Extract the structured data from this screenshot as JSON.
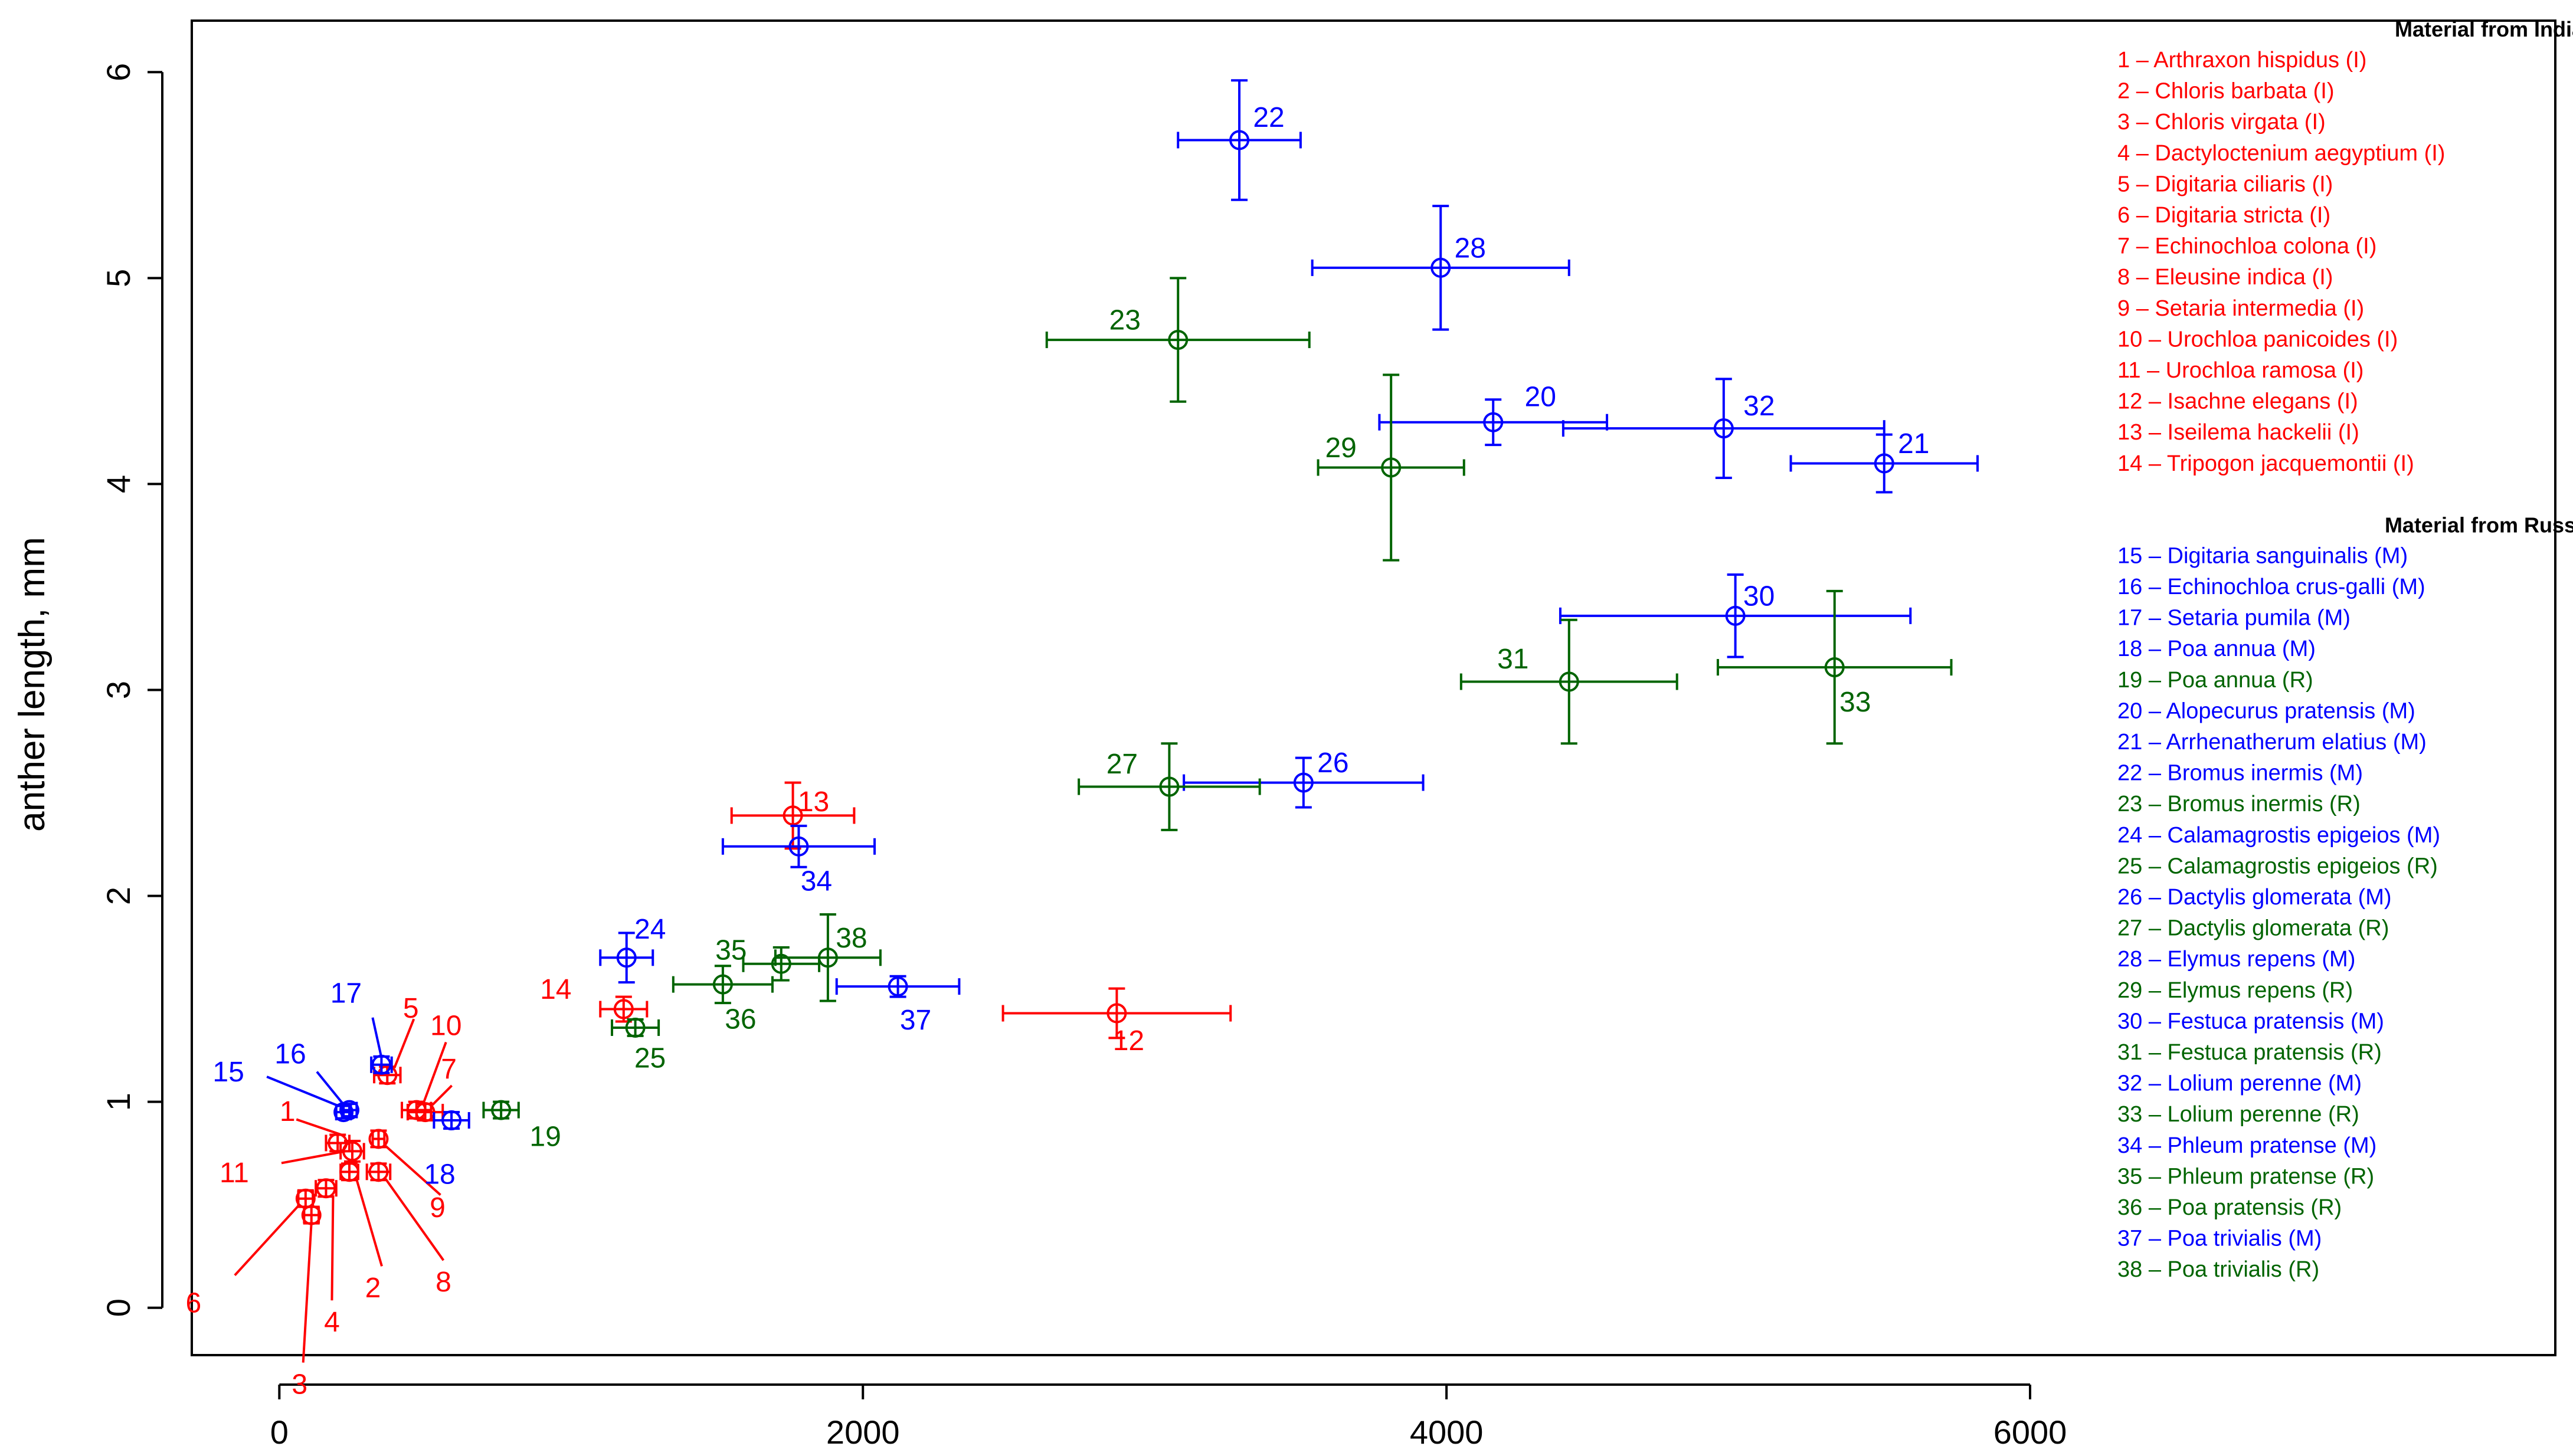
{
  "chart_data": {
    "type": "scatter",
    "ylabel": "anther length, mm",
    "xlabel": "",
    "xlim": [
      -300,
      7800
    ],
    "ylim": [
      -0.23,
      6.25
    ],
    "x_ticks": [
      0,
      2000,
      4000,
      6000
    ],
    "y_ticks": [
      0,
      1,
      2,
      3,
      4,
      5,
      6
    ],
    "legend_position": "top-right",
    "colors": {
      "I": "#ff0000",
      "M": "#0000ff",
      "R": "#006400"
    },
    "legend_groups": [
      {
        "heading": "Material from India",
        "ids": [
          1,
          2,
          3,
          4,
          5,
          6,
          7,
          8,
          9,
          10,
          11,
          12,
          13,
          14
        ]
      },
      {
        "heading": "Material from Russia",
        "ids": [
          15,
          16,
          17,
          18,
          19,
          20,
          21,
          22,
          23,
          24,
          25,
          26,
          27,
          28,
          29,
          30,
          31,
          32,
          33,
          34,
          35,
          36,
          37,
          38
        ]
      }
    ],
    "points": [
      {
        "id": 1,
        "name": "1 – Arthraxon hispidus (I)",
        "group": "I",
        "x": 200,
        "xerr": 40,
        "y": 0.8,
        "yerr": 0.04,
        "label": "1"
      },
      {
        "id": 2,
        "name": "2 – Chloris barbata (I)",
        "group": "I",
        "x": 240,
        "xerr": 30,
        "y": 0.66,
        "yerr": 0.04,
        "label": "2"
      },
      {
        "id": 3,
        "name": "3 – Chloris virgata (I)",
        "group": "I",
        "x": 110,
        "xerr": 25,
        "y": 0.45,
        "yerr": 0.04,
        "label": "3"
      },
      {
        "id": 4,
        "name": "4 – Dactyloctenium aegyptium (I)",
        "group": "I",
        "x": 160,
        "xerr": 35,
        "y": 0.58,
        "yerr": 0.04,
        "label": "4"
      },
      {
        "id": 5,
        "name": "5 – Digitaria ciliaris (I)",
        "group": "I",
        "x": 370,
        "xerr": 45,
        "y": 1.13,
        "yerr": 0.04,
        "label": "5"
      },
      {
        "id": 6,
        "name": "6 – Digitaria stricta (I)",
        "group": "I",
        "x": 90,
        "xerr": 25,
        "y": 0.53,
        "yerr": 0.04,
        "label": "6"
      },
      {
        "id": 7,
        "name": "7 – Echinochloa colona (I)",
        "group": "I",
        "x": 500,
        "xerr": 60,
        "y": 0.95,
        "yerr": 0.04,
        "label": "7"
      },
      {
        "id": 8,
        "name": "8 – Eleusine indica (I)",
        "group": "I",
        "x": 340,
        "xerr": 40,
        "y": 0.66,
        "yerr": 0.04,
        "label": "8"
      },
      {
        "id": 9,
        "name": "9 – Setaria intermedia (I)",
        "group": "I",
        "x": 340,
        "xerr": 20,
        "y": 0.82,
        "yerr": 0.04,
        "label": "9"
      },
      {
        "id": 10,
        "name": "10 – Urochloa panicoides (I)",
        "group": "I",
        "x": 470,
        "xerr": 50,
        "y": 0.96,
        "yerr": 0.04,
        "label": "10"
      },
      {
        "id": 11,
        "name": "11 – Urochloa ramosa (I)",
        "group": "I",
        "x": 250,
        "xerr": 40,
        "y": 0.76,
        "yerr": 0.05,
        "label": "11"
      },
      {
        "id": 12,
        "name": "12 – Isachne elegans (I)",
        "group": "I",
        "x": 2870,
        "xerr": 390,
        "y": 1.43,
        "yerr": 0.12,
        "label": "12"
      },
      {
        "id": 13,
        "name": "13 – Iseilema hackelii (I)",
        "group": "I",
        "x": 1760,
        "xerr": 210,
        "y": 2.39,
        "yerr": 0.16,
        "label": "13"
      },
      {
        "id": 14,
        "name": "14 – Tripogon jacquemontii (I)",
        "group": "I",
        "x": 1180,
        "xerr": 80,
        "y": 1.45,
        "yerr": 0.06,
        "label": "14"
      },
      {
        "id": 15,
        "name": "15 – Digitaria sanguinalis (M)",
        "group": "M",
        "x": 220,
        "xerr": 25,
        "y": 0.95,
        "yerr": 0.03,
        "label": "15"
      },
      {
        "id": 16,
        "name": "16 – Echinochloa crus-galli (M)",
        "group": "M",
        "x": 240,
        "xerr": 25,
        "y": 0.96,
        "yerr": 0.03,
        "label": "16"
      },
      {
        "id": 17,
        "name": "17 – Setaria pumila (M)",
        "group": "M",
        "x": 350,
        "xerr": 35,
        "y": 1.18,
        "yerr": 0.04,
        "label": "17"
      },
      {
        "id": 18,
        "name": "18 – Poa annua (M)",
        "group": "M",
        "x": 590,
        "xerr": 60,
        "y": 0.91,
        "yerr": 0.04,
        "label": "18"
      },
      {
        "id": 19,
        "name": "19 – Poa annua (R)",
        "group": "R",
        "x": 760,
        "xerr": 60,
        "y": 0.96,
        "yerr": 0.04,
        "label": "19"
      },
      {
        "id": 20,
        "name": "20 – Alopecurus pratensis (M)",
        "group": "M",
        "x": 4160,
        "xerr": 390,
        "y": 4.3,
        "yerr": 0.11,
        "label": "20"
      },
      {
        "id": 21,
        "name": "21 – Arrhenatherum elatius (M)",
        "group": "M",
        "x": 5500,
        "xerr": 320,
        "y": 4.1,
        "yerr": 0.14,
        "label": "21"
      },
      {
        "id": 22,
        "name": "22 – Bromus inermis (M)",
        "group": "M",
        "x": 3290,
        "xerr": 210,
        "y": 5.67,
        "yerr": 0.29,
        "label": "22"
      },
      {
        "id": 23,
        "name": "23 – Bromus inermis (R)",
        "group": "R",
        "x": 3080,
        "xerr": 450,
        "y": 4.7,
        "yerr": 0.3,
        "label": "23"
      },
      {
        "id": 24,
        "name": "24 – Calamagrostis epigeios (M)",
        "group": "M",
        "x": 1190,
        "xerr": 90,
        "y": 1.7,
        "yerr": 0.12,
        "label": "24"
      },
      {
        "id": 25,
        "name": "25 – Calamagrostis epigeios (R)",
        "group": "R",
        "x": 1220,
        "xerr": 80,
        "y": 1.36,
        "yerr": 0.04,
        "label": "25"
      },
      {
        "id": 26,
        "name": "26 – Dactylis glomerata (M)",
        "group": "M",
        "x": 3510,
        "xerr": 410,
        "y": 2.55,
        "yerr": 0.12,
        "label": "26"
      },
      {
        "id": 27,
        "name": "27 – Dactylis glomerata (R)",
        "group": "R",
        "x": 3050,
        "xerr": 310,
        "y": 2.53,
        "yerr": 0.21,
        "label": "27"
      },
      {
        "id": 28,
        "name": "28 – Elymus repens (M)",
        "group": "M",
        "x": 3980,
        "xerr": 440,
        "y": 5.05,
        "yerr": 0.3,
        "label": "28"
      },
      {
        "id": 29,
        "name": "29 – Elymus repens (R)",
        "group": "R",
        "x": 3810,
        "xerr": 250,
        "y": 4.08,
        "yerr": 0.45,
        "label": "29"
      },
      {
        "id": 30,
        "name": "30 – Festuca pratensis (M)",
        "group": "M",
        "x": 4990,
        "xerr": 600,
        "y": 3.36,
        "yerr": 0.2,
        "label": "30"
      },
      {
        "id": 31,
        "name": "31 – Festuca pratensis (R)",
        "group": "R",
        "x": 4420,
        "xerr": 370,
        "y": 3.04,
        "yerr": 0.3,
        "label": "31"
      },
      {
        "id": 32,
        "name": "32 – Lolium perenne (M)",
        "group": "M",
        "x": 4950,
        "xerr": 550,
        "y": 4.27,
        "yerr": 0.24,
        "label": "32"
      },
      {
        "id": 33,
        "name": "33 – Lolium perenne (R)",
        "group": "R",
        "x": 5330,
        "xerr": 400,
        "y": 3.11,
        "yerr": 0.37,
        "label": "33"
      },
      {
        "id": 34,
        "name": "34 – Phleum pratense (M)",
        "group": "M",
        "x": 1780,
        "xerr": 260,
        "y": 2.24,
        "yerr": 0.1,
        "label": "34"
      },
      {
        "id": 35,
        "name": "35 – Phleum pratense (R)",
        "group": "R",
        "x": 1720,
        "xerr": 130,
        "y": 1.67,
        "yerr": 0.08,
        "label": "35"
      },
      {
        "id": 36,
        "name": "36 – Poa pratensis (R)",
        "group": "R",
        "x": 1520,
        "xerr": 170,
        "y": 1.57,
        "yerr": 0.09,
        "label": "36"
      },
      {
        "id": 37,
        "name": "37 – Poa trivialis (M)",
        "group": "M",
        "x": 2120,
        "xerr": 210,
        "y": 1.56,
        "yerr": 0.05,
        "label": "37"
      },
      {
        "id": 38,
        "name": "38 – Poa trivialis (R)",
        "group": "R",
        "x": 1880,
        "xerr": 180,
        "y": 1.7,
        "yerr": 0.21,
        "label": "38"
      }
    ]
  }
}
